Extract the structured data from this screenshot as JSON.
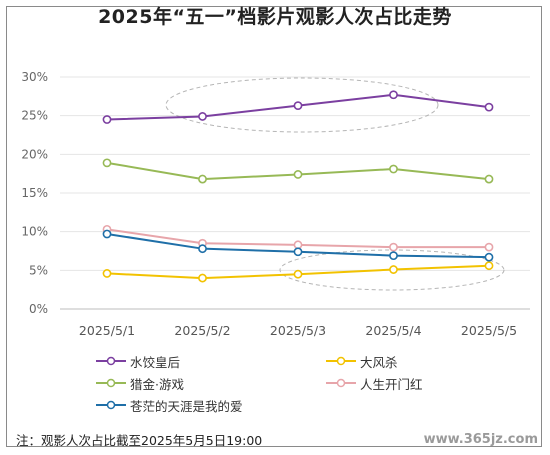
{
  "chart_data": {
    "type": "line",
    "title": "2025年“五一”档影片观影人次占比走势",
    "categories": [
      "2025/5/1",
      "2025/5/2",
      "2025/5/3",
      "2025/5/4",
      "2025/5/5"
    ],
    "y_ticks": [
      "0%",
      "5%",
      "10%",
      "15%",
      "20%",
      "25%",
      "30%"
    ],
    "ylim": [
      0,
      30
    ],
    "grid": true,
    "legend_position": "bottom",
    "series": [
      {
        "name": "水饺皇后",
        "color": "#7b3fa0",
        "values": [
          24.5,
          24.9,
          26.3,
          27.7,
          26.1
        ]
      },
      {
        "name": "大风杀",
        "color": "#f2c200",
        "values": [
          4.6,
          4.0,
          4.5,
          5.1,
          5.6
        ]
      },
      {
        "name": "猎金·游戏",
        "color": "#97b956",
        "values": [
          18.9,
          16.8,
          17.4,
          18.1,
          16.8
        ]
      },
      {
        "name": "人生开门红",
        "color": "#e7a5aa",
        "values": [
          10.3,
          8.5,
          8.3,
          8.0,
          8.0
        ]
      },
      {
        "name": "苍茫的天涯是我的爱",
        "color": "#1f6fa8",
        "values": [
          9.7,
          7.8,
          7.4,
          6.9,
          6.7
        ]
      }
    ]
  },
  "note": "注：观影人次占比截至2025年5月5日19:00",
  "watermark": "www.365jz.com"
}
